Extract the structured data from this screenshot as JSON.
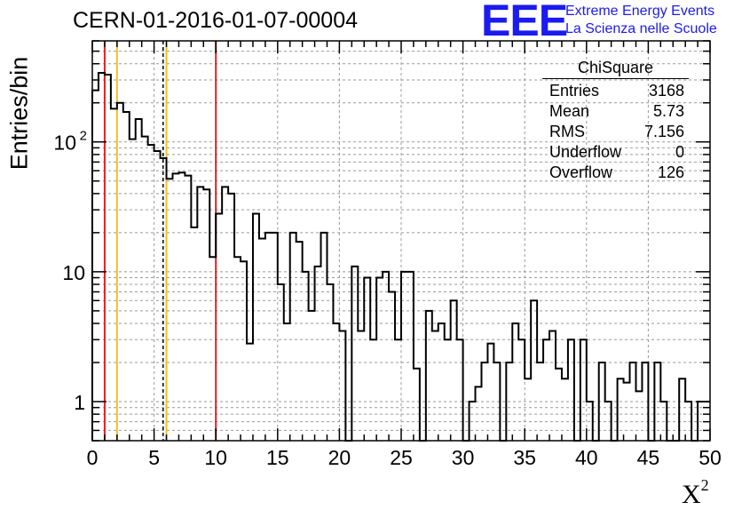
{
  "header": {
    "title": "CERN-01-2016-01-07-00004",
    "logo_text": "EEE",
    "org_line1": "Extreme Energy Events",
    "org_line2": "La Scienza nelle Scuole"
  },
  "stats_box": {
    "title": "ChiSquare",
    "rows": [
      {
        "label": "Entries",
        "value": "3168"
      },
      {
        "label": "Mean",
        "value": "5.73"
      },
      {
        "label": "RMS",
        "value": "7.156"
      },
      {
        "label": "Underflow",
        "value": "0"
      },
      {
        "label": "Overflow",
        "value": "126"
      }
    ]
  },
  "chart_data": {
    "type": "histogram",
    "title": "CERN-01-2016-01-07-00004",
    "xlabel": "X",
    "xlabel_superscript": "2",
    "ylabel": "Entries/bin",
    "xlim": [
      0,
      50
    ],
    "ylim": [
      0.5,
      600
    ],
    "yscale": "log",
    "bin_width": 0.5,
    "grid": true,
    "x_ticks": [
      "0",
      "5",
      "10",
      "15",
      "20",
      "25",
      "30",
      "35",
      "40",
      "45",
      "50"
    ],
    "y_ticks": [
      {
        "value": 1,
        "label": "1"
      },
      {
        "value": 10,
        "label": "10"
      },
      {
        "value": 100,
        "label": "10",
        "exp": "2"
      }
    ],
    "values": [
      250,
      340,
      330,
      180,
      200,
      170,
      105,
      150,
      110,
      95,
      85,
      75,
      52,
      57,
      58,
      55,
      22,
      45,
      43,
      13,
      28,
      45,
      40,
      13,
      12,
      2.8,
      28,
      18,
      20,
      20,
      8,
      4,
      20,
      17,
      10,
      5,
      11,
      20,
      8,
      4,
      3.5,
      0.5,
      11,
      3.5,
      9,
      3,
      9,
      10,
      7,
      3,
      10,
      10,
      1.8,
      0.5,
      5,
      3.5,
      4,
      3,
      6,
      3,
      0.5,
      1,
      1.3,
      2,
      2.8,
      2,
      0.5,
      2,
      4,
      3,
      1.5,
      6,
      2,
      3,
      3.5,
      1.8,
      1.5,
      3,
      0.5,
      3,
      1,
      0.5,
      2,
      1,
      0.5,
      1.5,
      1.4,
      2,
      1.2,
      2,
      0.5,
      2,
      1,
      0.5,
      0.5,
      1.5,
      1,
      0.5,
      1,
      1
    ],
    "markers": [
      {
        "x": 1,
        "color": "#e02020",
        "style": "solid"
      },
      {
        "x": 2,
        "color": "#f0c020",
        "style": "solid"
      },
      {
        "x": 5.73,
        "color": "#000000",
        "style": "dashed"
      },
      {
        "x": 6,
        "color": "#f0c020",
        "style": "solid"
      },
      {
        "x": 10,
        "color": "#e02020",
        "style": "solid"
      }
    ],
    "colors": {
      "histogram": "#000000",
      "grid": "#999999",
      "logo": "#1b1bf0"
    }
  }
}
